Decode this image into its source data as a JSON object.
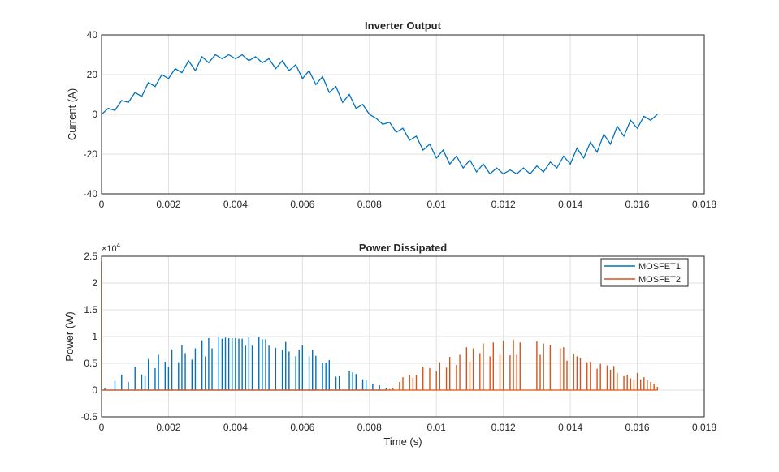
{
  "chart_data": [
    {
      "type": "line",
      "title": "Inverter Output",
      "xlabel": "",
      "ylabel": "Current (A)",
      "xlim": [
        0,
        0.018
      ],
      "ylim": [
        -40,
        40
      ],
      "xticks": [
        "0",
        "0.002",
        "0.004",
        "0.006",
        "0.008",
        "0.01",
        "0.012",
        "0.014",
        "0.016",
        "0.018"
      ],
      "yticks": [
        "-40",
        "-20",
        "0",
        "20",
        "40"
      ],
      "grid": true,
      "color": "#0072BD",
      "series": [
        {
          "points": [
            [
              0,
              0
            ],
            [
              0.0002,
              3
            ],
            [
              0.0004,
              2
            ],
            [
              0.0006,
              7
            ],
            [
              0.0008,
              6
            ],
            [
              0.001,
              11
            ],
            [
              0.0012,
              9
            ],
            [
              0.0014,
              16
            ],
            [
              0.0016,
              14
            ],
            [
              0.0018,
              20
            ],
            [
              0.002,
              18
            ],
            [
              0.0022,
              23
            ],
            [
              0.0024,
              21
            ],
            [
              0.0026,
              27
            ],
            [
              0.0028,
              22
            ],
            [
              0.003,
              29
            ],
            [
              0.0032,
              26
            ],
            [
              0.0034,
              30
            ],
            [
              0.0036,
              28
            ],
            [
              0.0038,
              30
            ],
            [
              0.004,
              28
            ],
            [
              0.0042,
              30
            ],
            [
              0.0044,
              27
            ],
            [
              0.0046,
              29
            ],
            [
              0.0048,
              26
            ],
            [
              0.005,
              28
            ],
            [
              0.0052,
              23
            ],
            [
              0.0054,
              27
            ],
            [
              0.0056,
              22
            ],
            [
              0.0058,
              25
            ],
            [
              0.006,
              18
            ],
            [
              0.0062,
              22
            ],
            [
              0.0064,
              15
            ],
            [
              0.0066,
              19
            ],
            [
              0.0068,
              11
            ],
            [
              0.007,
              14
            ],
            [
              0.0072,
              6
            ],
            [
              0.0074,
              10
            ],
            [
              0.0076,
              3
            ],
            [
              0.0078,
              5
            ],
            [
              0.008,
              0
            ],
            [
              0.0082,
              -2
            ],
            [
              0.0084,
              -5
            ],
            [
              0.0086,
              -4
            ],
            [
              0.0088,
              -9
            ],
            [
              0.009,
              -7
            ],
            [
              0.0092,
              -13
            ],
            [
              0.0094,
              -11
            ],
            [
              0.0096,
              -18
            ],
            [
              0.0098,
              -15
            ],
            [
              0.01,
              -22
            ],
            [
              0.0102,
              -18
            ],
            [
              0.0104,
              -25
            ],
            [
              0.0106,
              -21
            ],
            [
              0.0108,
              -27
            ],
            [
              0.011,
              -23
            ],
            [
              0.0112,
              -29
            ],
            [
              0.0114,
              -25
            ],
            [
              0.0116,
              -30
            ],
            [
              0.0118,
              -27
            ],
            [
              0.012,
              -30
            ],
            [
              0.0122,
              -28
            ],
            [
              0.0124,
              -30
            ],
            [
              0.0126,
              -27
            ],
            [
              0.0128,
              -30
            ],
            [
              0.013,
              -26
            ],
            [
              0.0132,
              -29
            ],
            [
              0.0134,
              -24
            ],
            [
              0.0136,
              -27
            ],
            [
              0.0138,
              -21
            ],
            [
              0.014,
              -25
            ],
            [
              0.0142,
              -17
            ],
            [
              0.0144,
              -22
            ],
            [
              0.0146,
              -14
            ],
            [
              0.0148,
              -19
            ],
            [
              0.015,
              -10
            ],
            [
              0.0152,
              -15
            ],
            [
              0.0154,
              -6
            ],
            [
              0.0156,
              -11
            ],
            [
              0.0158,
              -3
            ],
            [
              0.016,
              -7
            ],
            [
              0.0162,
              -1
            ],
            [
              0.0164,
              -3
            ],
            [
              0.0166,
              0
            ]
          ]
        }
      ]
    },
    {
      "type": "line",
      "title": "Power Dissipated",
      "xlabel": "Time (s)",
      "ylabel": "Power (W)",
      "y_exponent_label": "×10",
      "y_exponent": "4",
      "xlim": [
        0,
        0.018
      ],
      "ylim": [
        -5000,
        25000
      ],
      "xticks": [
        "0",
        "0.002",
        "0.004",
        "0.006",
        "0.008",
        "0.01",
        "0.012",
        "0.014",
        "0.016",
        "0.018"
      ],
      "yticks": [
        "-0.5",
        "0",
        "0.5",
        "1",
        "1.5",
        "2",
        "2.5"
      ],
      "grid": true,
      "legend_position": "top-right",
      "series": [
        {
          "name": "MOSFET1",
          "color": "#0072BD",
          "spikes": [
            [
              0.0001,
              300
            ],
            [
              0.0004,
              1700
            ],
            [
              0.0006,
              2900
            ],
            [
              0.0008,
              1500
            ],
            [
              0.001,
              4400
            ],
            [
              0.0012,
              2900
            ],
            [
              0.0013,
              2600
            ],
            [
              0.0014,
              5800
            ],
            [
              0.0016,
              4100
            ],
            [
              0.0017,
              6600
            ],
            [
              0.0019,
              5300
            ],
            [
              0.002,
              4300
            ],
            [
              0.0021,
              7600
            ],
            [
              0.0023,
              5200
            ],
            [
              0.0024,
              8400
            ],
            [
              0.0025,
              6900
            ],
            [
              0.0027,
              5700
            ],
            [
              0.0028,
              7800
            ],
            [
              0.003,
              9300
            ],
            [
              0.0031,
              6300
            ],
            [
              0.0032,
              9700
            ],
            [
              0.0033,
              7800
            ],
            [
              0.0035,
              10000
            ],
            [
              0.0036,
              9600
            ],
            [
              0.0037,
              9800
            ],
            [
              0.0038,
              9700
            ],
            [
              0.0039,
              9700
            ],
            [
              0.004,
              9700
            ],
            [
              0.0041,
              9600
            ],
            [
              0.0042,
              9600
            ],
            [
              0.0043,
              8300
            ],
            [
              0.0044,
              10000
            ],
            [
              0.0045,
              8300
            ],
            [
              0.0047,
              9900
            ],
            [
              0.0048,
              9500
            ],
            [
              0.0049,
              9500
            ],
            [
              0.005,
              8300
            ],
            [
              0.0052,
              7900
            ],
            [
              0.0054,
              7500
            ],
            [
              0.0055,
              9000
            ],
            [
              0.0056,
              7200
            ],
            [
              0.0058,
              6300
            ],
            [
              0.0059,
              7500
            ],
            [
              0.006,
              8400
            ],
            [
              0.0062,
              6300
            ],
            [
              0.0063,
              7500
            ],
            [
              0.0064,
              6400
            ],
            [
              0.0066,
              5100
            ],
            [
              0.0067,
              5100
            ],
            [
              0.0068,
              5600
            ],
            [
              0.007,
              2500
            ],
            [
              0.0071,
              2600
            ],
            [
              0.0074,
              3600
            ],
            [
              0.0075,
              3300
            ],
            [
              0.0076,
              3000
            ],
            [
              0.0078,
              2000
            ],
            [
              0.0079,
              1800
            ],
            [
              0.0081,
              1200
            ],
            [
              0.0083,
              900
            ],
            [
              0.0085,
              400
            ]
          ]
        },
        {
          "name": "MOSFET2",
          "color": "#D95319",
          "spikes": [
            [
              0,
              24000
            ],
            [
              0.0086,
              200
            ],
            [
              0.0087,
              400
            ],
            [
              0.0089,
              1500
            ],
            [
              0.009,
              2400
            ],
            [
              0.0092,
              2800
            ],
            [
              0.0093,
              2300
            ],
            [
              0.0094,
              2800
            ],
            [
              0.0096,
              4400
            ],
            [
              0.0098,
              4100
            ],
            [
              0.01,
              3500
            ],
            [
              0.0101,
              5200
            ],
            [
              0.0103,
              4200
            ],
            [
              0.0104,
              6200
            ],
            [
              0.0106,
              4700
            ],
            [
              0.0107,
              6600
            ],
            [
              0.0109,
              8000
            ],
            [
              0.011,
              5300
            ],
            [
              0.0111,
              7800
            ],
            [
              0.0113,
              6900
            ],
            [
              0.0114,
              8700
            ],
            [
              0.0116,
              6300
            ],
            [
              0.0117,
              8900
            ],
            [
              0.0119,
              6600
            ],
            [
              0.012,
              9200
            ],
            [
              0.0122,
              6500
            ],
            [
              0.0123,
              9400
            ],
            [
              0.0124,
              6600
            ],
            [
              0.0125,
              8900
            ],
            [
              0.013,
              9100
            ],
            [
              0.0131,
              6600
            ],
            [
              0.0132,
              8700
            ],
            [
              0.0134,
              8400
            ],
            [
              0.0137,
              7800
            ],
            [
              0.0138,
              8000
            ],
            [
              0.0139,
              5500
            ],
            [
              0.0141,
              6800
            ],
            [
              0.0142,
              6300
            ],
            [
              0.0143,
              6000
            ],
            [
              0.0145,
              5200
            ],
            [
              0.0146,
              5300
            ],
            [
              0.0148,
              4000
            ],
            [
              0.0149,
              4900
            ],
            [
              0.0151,
              4600
            ],
            [
              0.0152,
              3800
            ],
            [
              0.0153,
              4500
            ],
            [
              0.0154,
              3200
            ],
            [
              0.0156,
              2600
            ],
            [
              0.0157,
              2900
            ],
            [
              0.0158,
              2200
            ],
            [
              0.0159,
              1900
            ],
            [
              0.016,
              3200
            ],
            [
              0.0161,
              2000
            ],
            [
              0.0162,
              2400
            ],
            [
              0.0163,
              1800
            ],
            [
              0.0164,
              1500
            ],
            [
              0.0165,
              1200
            ],
            [
              0.0166,
              600
            ]
          ]
        }
      ]
    }
  ]
}
